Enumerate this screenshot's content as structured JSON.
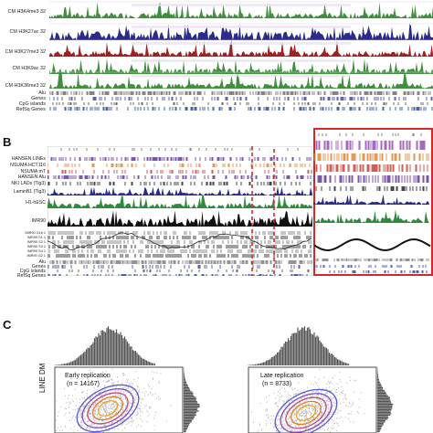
{
  "panel_a": {
    "tracks": [
      {
        "label": "CM H3K4me3 32",
        "color": "#3f8f3f"
      },
      {
        "label": "CM H3K27ac 32",
        "color": "#2b2b8c"
      },
      {
        "label": "CM H3K27me3 32",
        "color": "#a02121"
      },
      {
        "label": "CM H3K9ac 32",
        "color": "#3f8f3f"
      },
      {
        "label": "CM H3K36me3 32",
        "color": "#3f8f3f"
      }
    ],
    "annot_labels": [
      "Alu",
      "Genes",
      "CpG islands",
      "RefSq Genes"
    ]
  },
  "panel_b": {
    "letter": "B",
    "left_labels": [
      "HANSEN LINEs",
      "NSUMA HCT116",
      "NSUMA mT",
      "HANSEN Alu",
      "NKI LADs (Tig3)",
      "LaminB1 (Tig3)",
      "H1-hESC",
      "IMR90",
      "IMR90 G1b 1",
      "IMR90 S1 1",
      "IMR90 S2 1",
      "IMR90 S3 1",
      "IMR90 S4 1",
      "IMR90 G2 1",
      "Alu",
      "Genes",
      "CpG islands",
      "RefSq Genes"
    ],
    "accent_color": "#d62828"
  },
  "panel_c": {
    "letter": "C",
    "ylabel": "LINE DM",
    "plots": [
      {
        "title": "Early replication",
        "n": "(n = 14167)"
      },
      {
        "title": "Late replication",
        "n": "(n = 8733)"
      }
    ]
  }
}
